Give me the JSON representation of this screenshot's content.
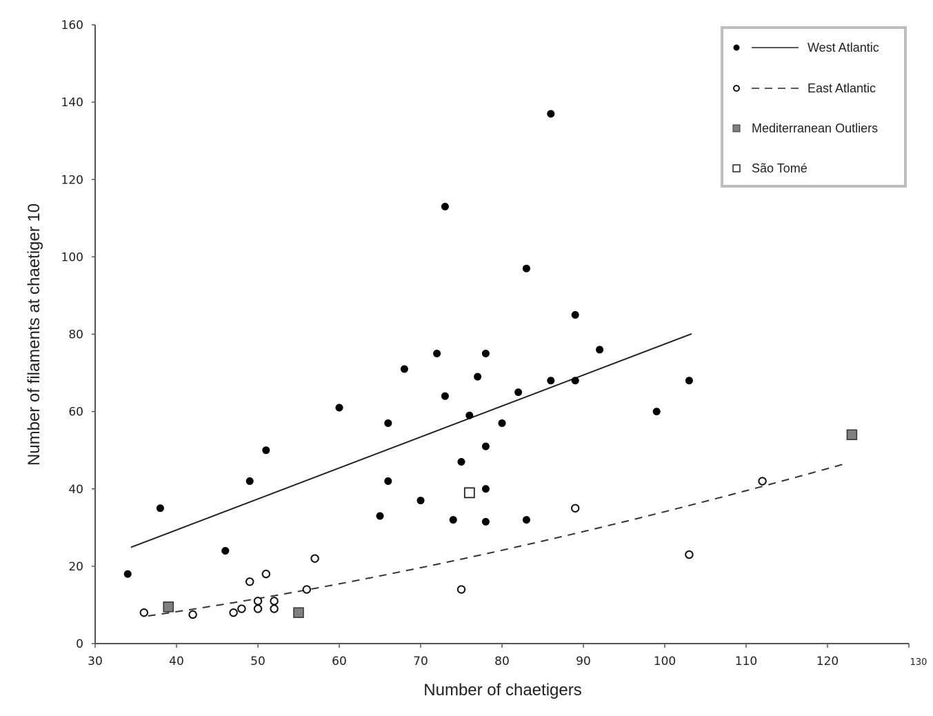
{
  "chart_data": {
    "type": "scatter",
    "title": "",
    "xlabel": "Number of chaetigers",
    "ylabel": "Number of filaments at chaetiger 10",
    "xlim": [
      30,
      130
    ],
    "ylim": [
      0,
      160
    ],
    "xticks": [
      30,
      40,
      50,
      60,
      70,
      80,
      90,
      100,
      110,
      120,
      130
    ],
    "yticks": [
      0,
      20,
      40,
      60,
      80,
      100,
      120,
      140,
      160
    ],
    "grid": false,
    "legend_position": "top-right",
    "series": [
      {
        "name": "West Atlantic",
        "marker": "filled-circle",
        "color": "#000000",
        "trendline": {
          "style": "solid",
          "type": "linear",
          "from": [
            34.4,
            24.9
          ],
          "to": [
            103.3,
            80.1
          ]
        },
        "points": [
          [
            34,
            18
          ],
          [
            38,
            35
          ],
          [
            46,
            24
          ],
          [
            49,
            42
          ],
          [
            51,
            50
          ],
          [
            60,
            61
          ],
          [
            65,
            33
          ],
          [
            66,
            57
          ],
          [
            66,
            42
          ],
          [
            68,
            71
          ],
          [
            70,
            37
          ],
          [
            72,
            75
          ],
          [
            73,
            113
          ],
          [
            73,
            64
          ],
          [
            74,
            32
          ],
          [
            75,
            47
          ],
          [
            76,
            59
          ],
          [
            77,
            69
          ],
          [
            78,
            75
          ],
          [
            78,
            51
          ],
          [
            78,
            40
          ],
          [
            78,
            31.5
          ],
          [
            80,
            57
          ],
          [
            82,
            65
          ],
          [
            83,
            97
          ],
          [
            83,
            32
          ],
          [
            86,
            137
          ],
          [
            86,
            68
          ],
          [
            89,
            85
          ],
          [
            89,
            68
          ],
          [
            92,
            76
          ],
          [
            99,
            60
          ],
          [
            103,
            68
          ]
        ]
      },
      {
        "name": "East Atlantic",
        "marker": "open-circle",
        "color": "#000000",
        "trendline": {
          "style": "dashed",
          "type": "power",
          "formula": "y = 7*(x/36)^1.55",
          "from_x": 36.5,
          "to_x": 122.7
        },
        "points": [
          [
            36,
            8
          ],
          [
            42,
            7.5
          ],
          [
            47,
            8
          ],
          [
            48,
            9
          ],
          [
            49,
            16
          ],
          [
            50,
            9
          ],
          [
            50,
            11
          ],
          [
            51,
            18
          ],
          [
            52,
            9
          ],
          [
            52,
            11
          ],
          [
            56,
            14
          ],
          [
            57,
            22
          ],
          [
            75,
            14
          ],
          [
            89,
            35
          ],
          [
            103,
            23
          ],
          [
            112,
            42
          ]
        ]
      },
      {
        "name": "Mediterranean Outliers",
        "marker": "filled-square",
        "color": "#808080",
        "points": [
          [
            39,
            9.5
          ],
          [
            55,
            8
          ],
          [
            123,
            54
          ]
        ]
      },
      {
        "name": "São Tomé",
        "marker": "open-square",
        "color": "#ffffff",
        "points": [
          [
            76,
            39
          ]
        ]
      }
    ]
  },
  "legend": {
    "items": [
      {
        "label": "West Atlantic"
      },
      {
        "label": "East Atlantic"
      },
      {
        "label": "Mediterranean Outliers"
      },
      {
        "label": "São Tomé"
      }
    ]
  }
}
